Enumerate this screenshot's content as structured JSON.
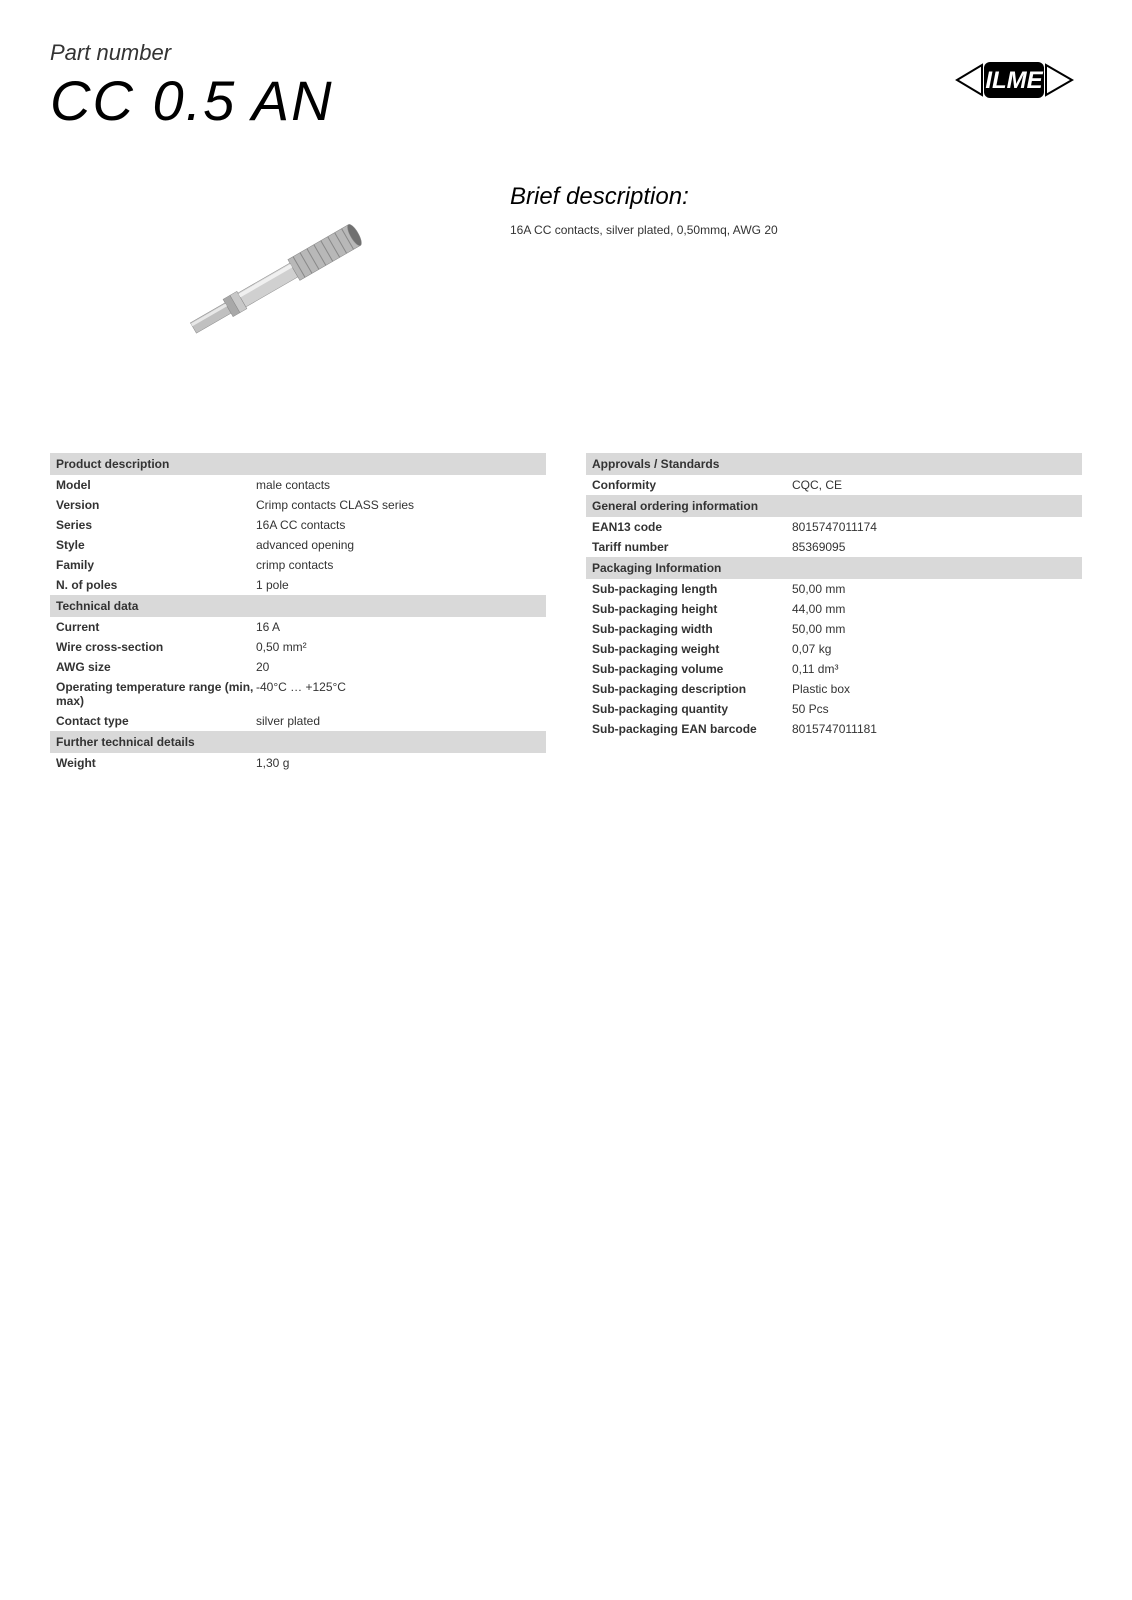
{
  "header": {
    "label": "Part number",
    "part_number": "CC 0.5 AN"
  },
  "brief": {
    "title": "Brief description:",
    "text": "16A CC contacts, silver plated, 0,50mmq, AWG 20"
  },
  "left_column": [
    {
      "section": "Product description",
      "rows": [
        {
          "label": "Model",
          "value": "male contacts"
        },
        {
          "label": "Version",
          "value": "Crimp contacts CLASS series"
        },
        {
          "label": "Series",
          "value": "16A CC contacts"
        },
        {
          "label": "Style",
          "value": "advanced opening"
        },
        {
          "label": "Family",
          "value": "crimp contacts"
        },
        {
          "label": "N. of poles",
          "value": "1 pole"
        }
      ]
    },
    {
      "section": "Technical data",
      "rows": [
        {
          "label": "Current",
          "value": "16 A"
        },
        {
          "label": "Wire cross-section",
          "value": "0,50 mm²"
        },
        {
          "label": "AWG size",
          "value": "20"
        },
        {
          "label": "Operating temperature range (min, max)",
          "value": "-40°C … +125°C"
        },
        {
          "label": "Contact type",
          "value": "silver plated"
        }
      ]
    },
    {
      "section": "Further technical details",
      "rows": [
        {
          "label": "Weight",
          "value": "1,30 g"
        }
      ]
    }
  ],
  "right_column": [
    {
      "section": "Approvals / Standards",
      "rows": [
        {
          "label": "Conformity",
          "value": "CQC, CE"
        }
      ]
    },
    {
      "section": "General ordering information",
      "rows": [
        {
          "label": "EAN13 code",
          "value": "8015747011174"
        },
        {
          "label": "Tariff number",
          "value": "85369095"
        }
      ]
    },
    {
      "section": "Packaging Information",
      "rows": [
        {
          "label": "Sub-packaging length",
          "value": "50,00 mm"
        },
        {
          "label": "Sub-packaging height",
          "value": "44,00 mm"
        },
        {
          "label": "Sub-packaging width",
          "value": "50,00 mm"
        },
        {
          "label": "Sub-packaging weight",
          "value": "0,07 kg"
        },
        {
          "label": "Sub-packaging volume",
          "value": "0,11 dm³"
        },
        {
          "label": "Sub-packaging description",
          "value": "Plastic box"
        },
        {
          "label": "Sub-packaging quantity",
          "value": "50 Pcs"
        },
        {
          "label": "Sub-packaging EAN barcode",
          "value": "8015747011181"
        }
      ]
    }
  ],
  "colors": {
    "section_bg": "#d9d9d9",
    "text": "#333333",
    "background": "#ffffff"
  },
  "typography": {
    "part_number_fontsize": 56,
    "label_fontsize": 22,
    "brief_title_fontsize": 24,
    "body_fontsize": 12
  }
}
